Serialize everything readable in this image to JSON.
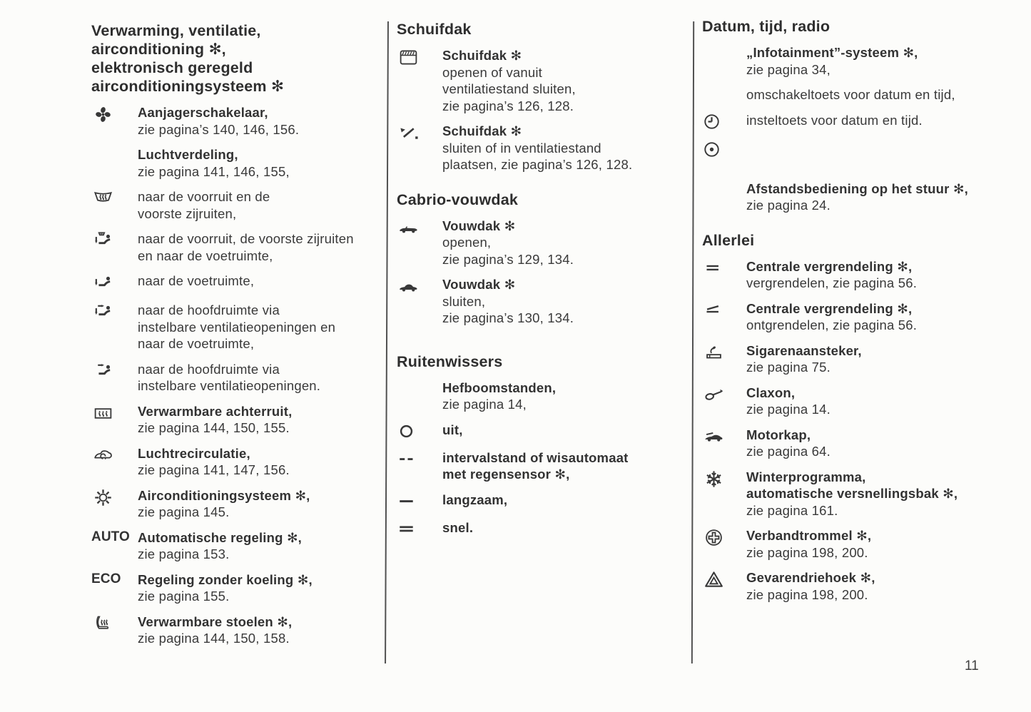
{
  "page": {
    "number": "11"
  },
  "columns": [
    {
      "sections": [
        {
          "heading_lines": [
            "Verwarming, ventilatie,",
            "airconditioning ✻,",
            "elektronisch geregeld",
            "airconditioningsysteem ✻"
          ],
          "items": [
            {
              "icon": "fan-icon",
              "lines": [
                {
                  "t": "Aanjagerschakelaar,",
                  "b": true
                },
                {
                  "t": "zie pagina’s 140, 146, 156.",
                  "b": false
                }
              ]
            },
            {
              "icon": null,
              "lines": [
                {
                  "t": "Luchtverdeling,",
                  "b": true
                },
                {
                  "t": "zie pagina 141, 146, 155,",
                  "b": false
                }
              ]
            },
            {
              "icon": "windshield-demist-icon",
              "lines": [
                {
                  "t": "naar de voorruit en de",
                  "b": false
                },
                {
                  "t": "voorste zijruiten,",
                  "b": false
                }
              ]
            },
            {
              "icon": "air-windshield-footwell-icon",
              "lines": [
                {
                  "t": "naar de voorruit, de voorste zijruiten",
                  "b": false
                },
                {
                  "t": "en naar de voetruimte,",
                  "b": false
                }
              ]
            },
            {
              "icon": "air-footwell-icon",
              "lines": [
                {
                  "t": "naar de voetruimte,",
                  "b": false
                }
              ]
            },
            {
              "icon": "air-head-footwell-icon",
              "lines": [
                {
                  "t": "naar de hoofdruimte via",
                  "b": false
                },
                {
                  "t": "instelbare ventilatieopeningen en",
                  "b": false
                },
                {
                  "t": "naar de voetruimte,",
                  "b": false
                }
              ]
            },
            {
              "icon": "air-head-icon",
              "lines": [
                {
                  "t": "naar de hoofdruimte via",
                  "b": false
                },
                {
                  "t": "instelbare ventilatieopeningen.",
                  "b": false
                }
              ]
            },
            {
              "icon": "rear-window-heat-icon",
              "lines": [
                {
                  "t": "Verwarmbare achterruit,",
                  "b": true
                },
                {
                  "t": "zie pagina 144, 150, 155.",
                  "b": false
                }
              ]
            },
            {
              "icon": "recirculation-icon",
              "lines": [
                {
                  "t": "Luchtrecirculatie,",
                  "b": true
                },
                {
                  "t": "zie pagina 141, 147, 156.",
                  "b": false
                }
              ]
            },
            {
              "icon": "ac-snowflake-icon",
              "lines": [
                {
                  "t": "Airconditioningsysteem ✻,",
                  "b": true
                },
                {
                  "t": "zie pagina 145.",
                  "b": false
                }
              ]
            },
            {
              "icon": null,
              "icon_text": "AUTO",
              "lines": [
                {
                  "t": "Automatische regeling ✻,",
                  "b": true
                },
                {
                  "t": "zie pagina 153.",
                  "b": false
                }
              ]
            },
            {
              "icon": null,
              "icon_text": "ECO",
              "lines": [
                {
                  "t": "Regeling zonder koeling ✻,",
                  "b": true
                },
                {
                  "t": "zie pagina 155.",
                  "b": false
                }
              ]
            },
            {
              "icon": "heated-seat-icon",
              "lines": [
                {
                  "t": "Verwarmbare stoelen ✻,",
                  "b": true
                },
                {
                  "t": "zie pagina 144, 150, 158.",
                  "b": false
                }
              ]
            }
          ]
        }
      ]
    },
    {
      "sections": [
        {
          "heading_lines": [
            "Schuifdak"
          ],
          "items": [
            {
              "icon": "sunroof-icon",
              "lines": [
                {
                  "t": "Schuifdak ✻",
                  "b": true
                },
                {
                  "t": "openen of vanuit",
                  "b": false
                },
                {
                  "t": "ventilatiestand sluiten,",
                  "b": false
                },
                {
                  "t": "zie pagina’s 126, 128.",
                  "b": false
                }
              ]
            },
            {
              "icon": "sunroof-tilt-icon",
              "lines": [
                {
                  "t": "Schuifdak ✻",
                  "b": true
                },
                {
                  "t": "sluiten of in ventilatiestand",
                  "b": false
                },
                {
                  "t": "plaatsen, zie pagina’s 126, 128.",
                  "b": false
                }
              ]
            }
          ]
        },
        {
          "heading_lines": [
            "Cabrio-vouwdak"
          ],
          "items": [
            {
              "icon": "cabrio-open-icon",
              "lines": [
                {
                  "t": "Vouwdak ✻",
                  "b": true
                },
                {
                  "t": "openen,",
                  "b": false
                },
                {
                  "t": "zie pagina’s 129, 134.",
                  "b": false
                }
              ]
            },
            {
              "icon": "cabrio-closed-icon",
              "lines": [
                {
                  "t": "Vouwdak ✻",
                  "b": true
                },
                {
                  "t": "sluiten,",
                  "b": false
                },
                {
                  "t": "zie pagina’s 130, 134.",
                  "b": false
                }
              ]
            }
          ]
        },
        {
          "heading_lines": [
            "Ruitenwissers"
          ],
          "items": [
            {
              "icon": null,
              "lines": [
                {
                  "t": "Hefboomstanden,",
                  "b": true
                },
                {
                  "t": "zie pagina 14,",
                  "b": false
                }
              ]
            },
            {
              "icon": "wiper-off-icon",
              "lines": [
                {
                  "t": "uit,",
                  "b": true
                }
              ]
            },
            {
              "icon": "wiper-interval-icon",
              "lines": [
                {
                  "t": "intervalstand of wisautomaat",
                  "b": true
                },
                {
                  "t": "met regensensor ✻,",
                  "b": true
                }
              ]
            },
            {
              "icon": "wiper-slow-icon",
              "lines": [
                {
                  "t": "langzaam,",
                  "b": true
                }
              ]
            },
            {
              "icon": "wiper-fast-icon",
              "lines": [
                {
                  "t": "snel.",
                  "b": true
                }
              ]
            }
          ]
        }
      ]
    },
    {
      "sections": [
        {
          "heading_lines": [
            "Datum, tijd, radio"
          ],
          "items": [
            {
              "icon": null,
              "lines": [
                {
                  "t": "„Infotainment”-systeem ✻,",
                  "b": true
                },
                {
                  "t": "zie pagina 34,",
                  "b": false
                }
              ]
            },
            {
              "icon": null,
              "lines": [
                {
                  "t": "omschakeltoets voor datum en tijd,",
                  "b": false
                }
              ]
            },
            {
              "icon": "clock-icon",
              "lines": [
                {
                  "t": "insteltoets voor datum en tijd.",
                  "b": false
                }
              ]
            },
            {
              "icon": "dot-circle-icon",
              "lines": []
            },
            {
              "icon": null,
              "lines": [
                {
                  "t": "Afstandsbediening op het stuur ✻,",
                  "b": true
                },
                {
                  "t": "zie pagina 24.",
                  "b": false
                }
              ]
            }
          ]
        },
        {
          "heading_lines": [
            "Allerlei"
          ],
          "items": [
            {
              "icon": "lock-icon",
              "lines": [
                {
                  "t": "Centrale vergrendeling ✻,",
                  "b": true
                },
                {
                  "t": "vergrendelen, zie pagina 56.",
                  "b": false
                }
              ]
            },
            {
              "icon": "unlock-icon",
              "lines": [
                {
                  "t": "Centrale vergrendeling ✻,",
                  "b": true
                },
                {
                  "t": "ontgrendelen, zie pagina 56.",
                  "b": false
                }
              ]
            },
            {
              "icon": "lighter-icon",
              "lines": [
                {
                  "t": "Sigarenaansteker,",
                  "b": true
                },
                {
                  "t": "zie pagina 75.",
                  "b": false
                }
              ]
            },
            {
              "icon": "horn-icon",
              "lines": [
                {
                  "t": "Claxon,",
                  "b": true
                },
                {
                  "t": "zie pagina 14.",
                  "b": false
                }
              ]
            },
            {
              "icon": "hood-icon",
              "lines": [
                {
                  "t": "Motorkap,",
                  "b": true
                },
                {
                  "t": "zie pagina 64.",
                  "b": false
                }
              ]
            },
            {
              "icon": "winter-snowflake-icon",
              "lines": [
                {
                  "t": "Winterprogramma,",
                  "b": true
                },
                {
                  "t": "automatische versnellingsbak ✻,",
                  "b": true
                },
                {
                  "t": "zie pagina 161.",
                  "b": false
                }
              ]
            },
            {
              "icon": "first-aid-icon",
              "lines": [
                {
                  "t": "Verbandtrommel ✻,",
                  "b": true
                },
                {
                  "t": "zie pagina 198, 200.",
                  "b": false
                }
              ]
            },
            {
              "icon": "warning-triangle-icon",
              "lines": [
                {
                  "t": "Gevarendriehoek ✻,",
                  "b": true
                },
                {
                  "t": "zie pagina 198, 200.",
                  "b": false
                }
              ]
            }
          ]
        }
      ]
    }
  ]
}
